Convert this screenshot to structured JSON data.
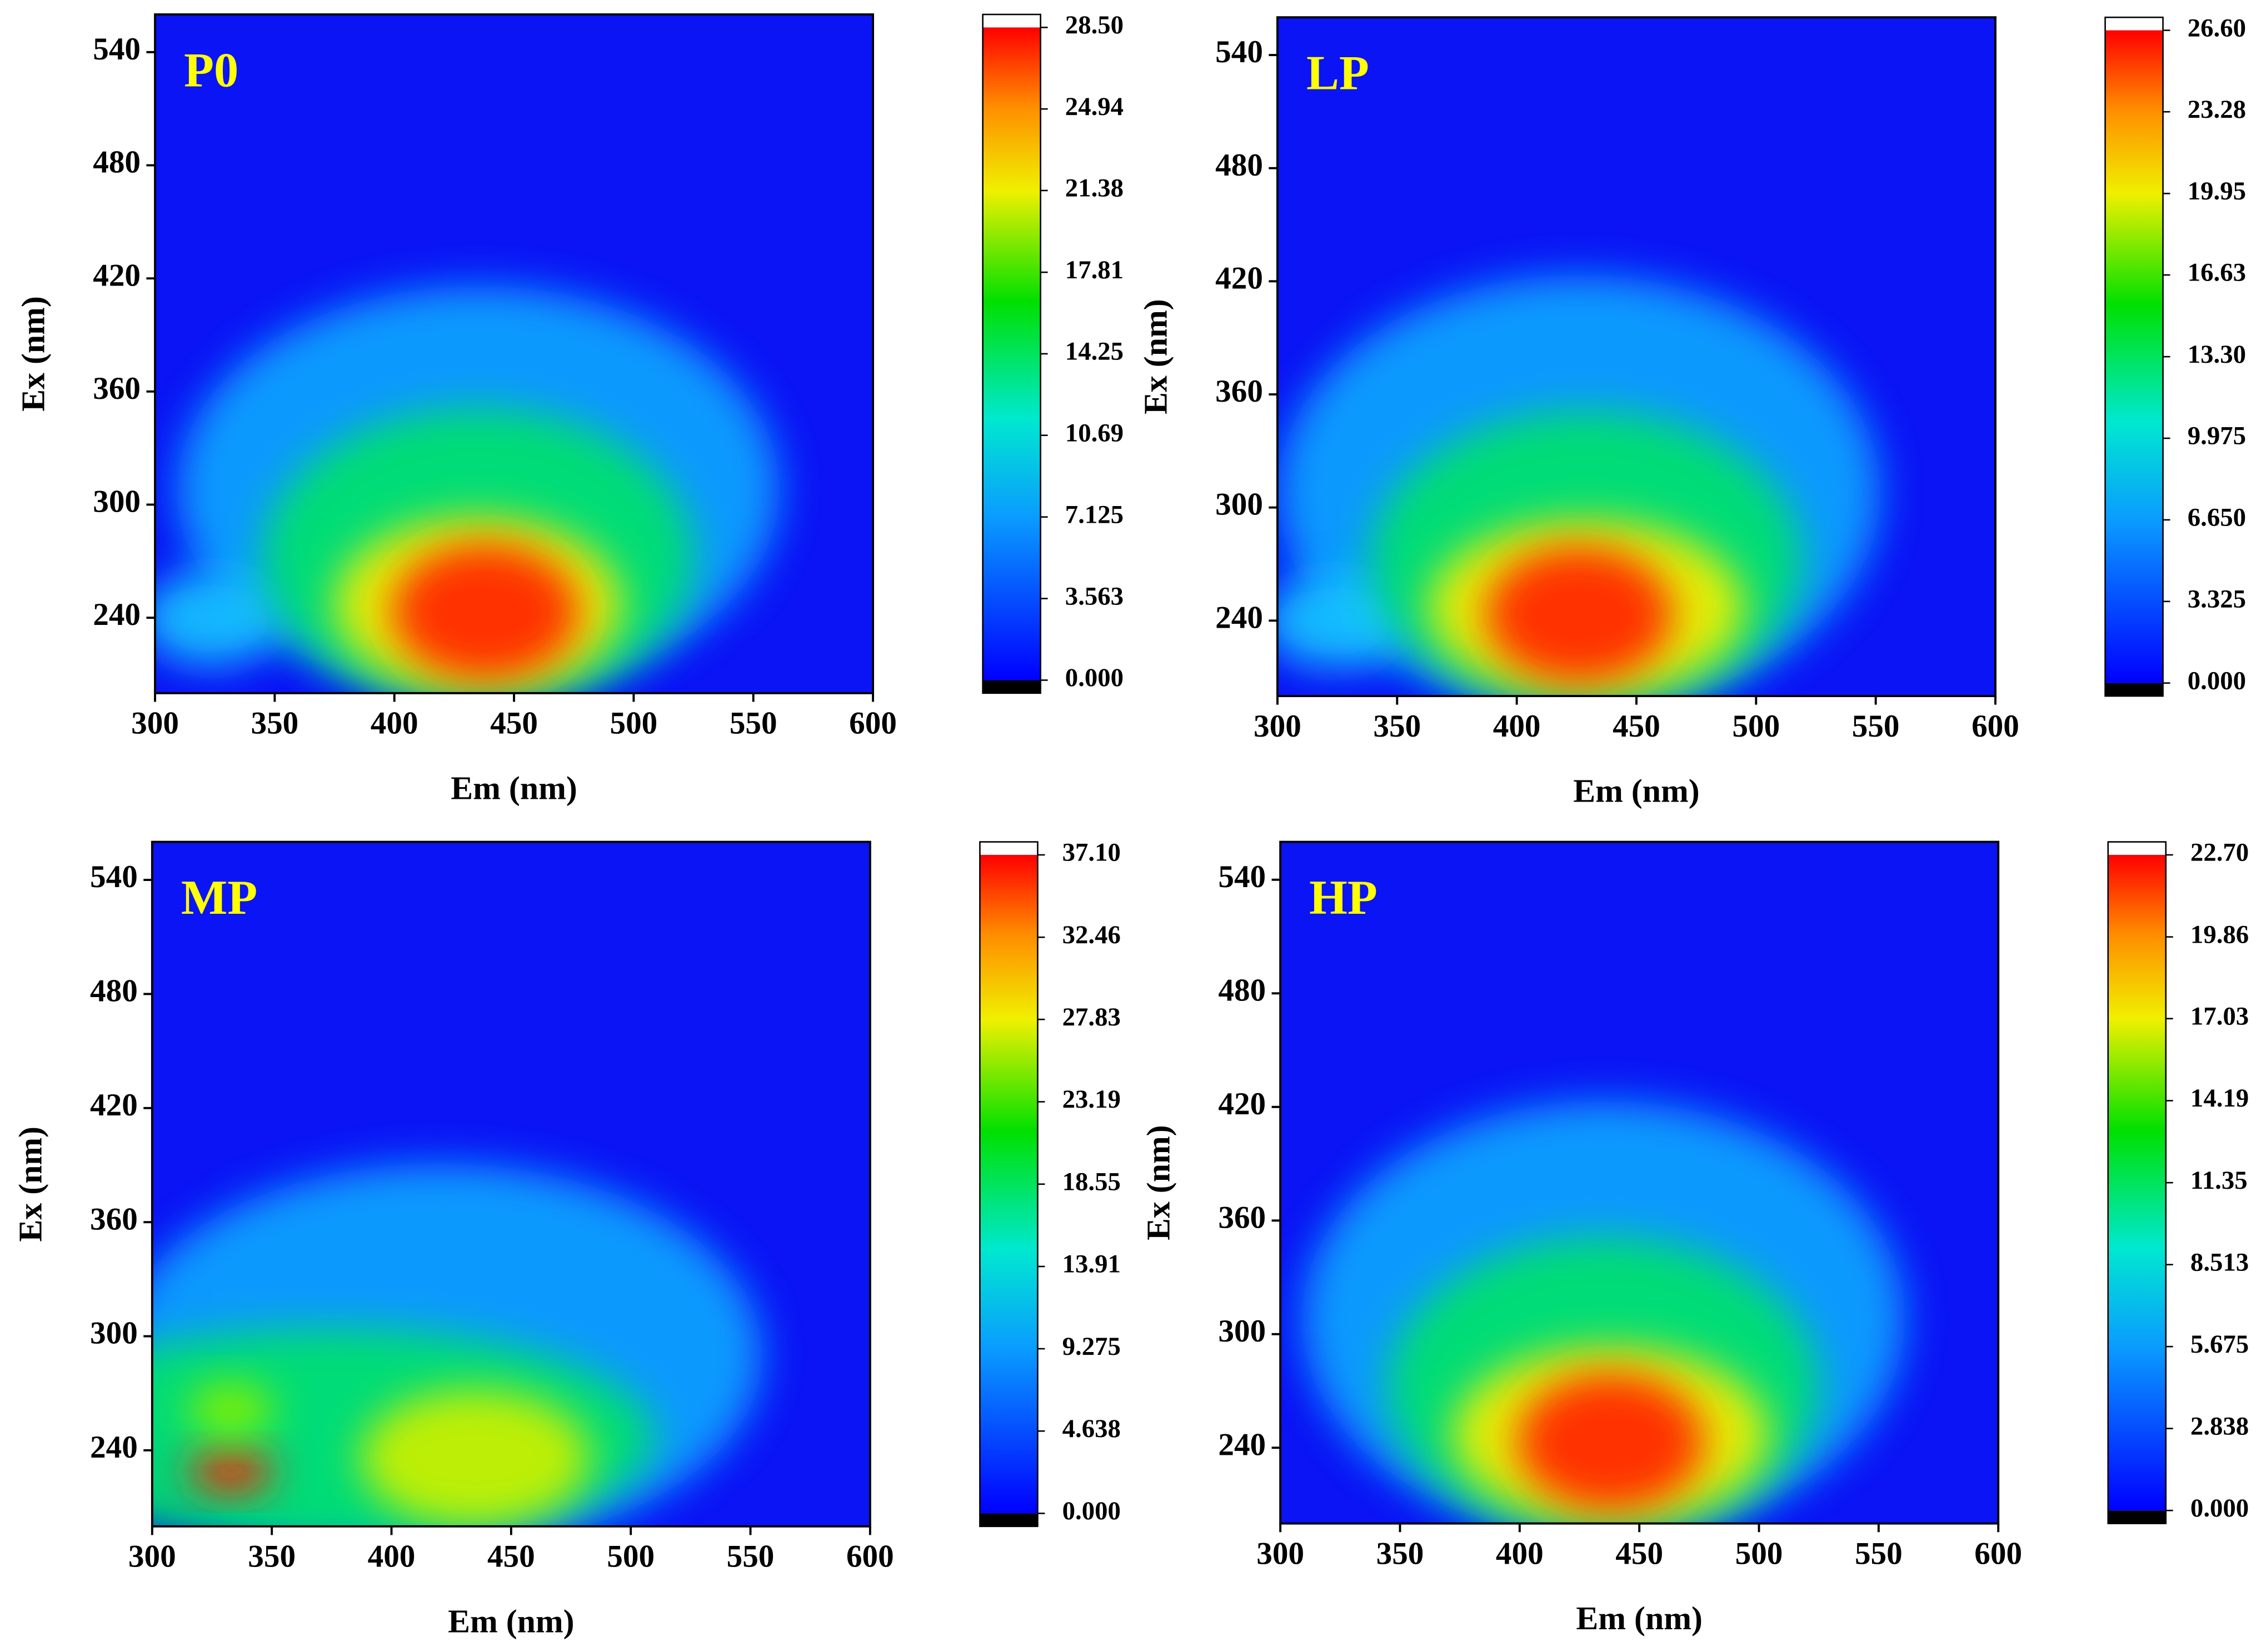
{
  "chart_data": [
    {
      "type": "contour",
      "label": "P0",
      "xlabel": "Em (nm)",
      "ylabel": "Ex (nm)",
      "xlim": [
        300,
        600
      ],
      "xticks": [
        300,
        350,
        400,
        450,
        500,
        550,
        600
      ],
      "ylim": [
        200,
        560
      ],
      "yticks": [
        240,
        300,
        360,
        420,
        480,
        540
      ],
      "clim": [
        0,
        28.5
      ],
      "cticks": [
        {
          "value": 0,
          "label": "0.000"
        },
        3.563,
        7.125,
        10.69,
        14.25,
        17.81,
        21.38,
        24.94,
        {
          "value": 28.5,
          "label": "28.50"
        }
      ]
    },
    {
      "type": "contour",
      "label": "LP",
      "xlabel": "Em (nm)",
      "ylabel": "Ex (nm)",
      "xlim": [
        300,
        600
      ],
      "xticks": [
        300,
        350,
        400,
        450,
        500,
        550,
        600
      ],
      "ylim": [
        200,
        560
      ],
      "yticks": [
        240,
        300,
        360,
        420,
        480,
        540
      ],
      "clim": [
        0,
        26.6
      ],
      "cticks": [
        {
          "value": 0,
          "label": "0.000"
        },
        3.325,
        {
          "value": 6.65,
          "label": "6.650"
        },
        9.975,
        {
          "value": 13.3,
          "label": "13.30"
        },
        16.63,
        19.95,
        23.28,
        {
          "value": 26.6,
          "label": "26.60"
        }
      ]
    },
    {
      "type": "contour",
      "label": "MP",
      "xlabel": "Em (nm)",
      "ylabel": "Ex (nm)",
      "xlim": [
        300,
        600
      ],
      "xticks": [
        300,
        350,
        400,
        450,
        500,
        550,
        600
      ],
      "ylim": [
        200,
        560
      ],
      "yticks": [
        240,
        300,
        360,
        420,
        480,
        540
      ],
      "clim": [
        0,
        37.1
      ],
      "cticks": [
        {
          "value": 0,
          "label": "0.000"
        },
        4.638,
        9.275,
        13.91,
        18.55,
        23.19,
        27.83,
        32.46,
        {
          "value": 37.1,
          "label": "37.10"
        }
      ]
    },
    {
      "type": "contour",
      "label": "HP",
      "xlabel": "Em (nm)",
      "ylabel": "Ex (nm)",
      "xlim": [
        300,
        600
      ],
      "xticks": [
        300,
        350,
        400,
        450,
        500,
        550,
        600
      ],
      "ylim": [
        200,
        560
      ],
      "yticks": [
        240,
        300,
        360,
        420,
        480,
        540
      ],
      "clim": [
        0,
        22.7
      ],
      "cticks": [
        {
          "value": 0,
          "label": "0.000"
        },
        2.838,
        5.675,
        8.513,
        11.35,
        14.19,
        17.03,
        19.86,
        {
          "value": 22.7,
          "label": "22.70"
        }
      ]
    }
  ]
}
